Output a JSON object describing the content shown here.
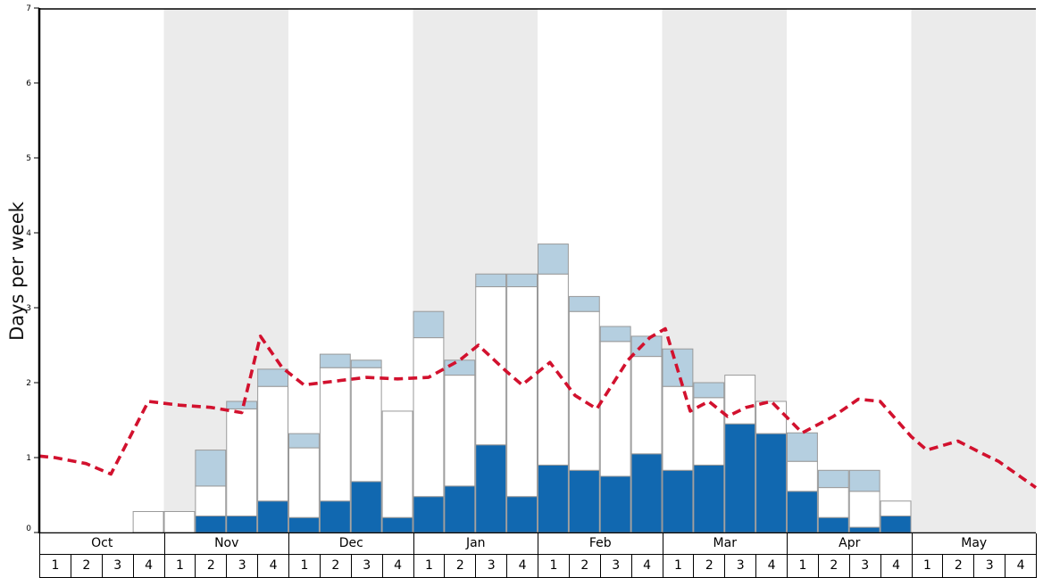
{
  "colors": {
    "band": "#ebebeb",
    "bar_border": "#999999",
    "axis": "#000000",
    "tick_text": "#000000"
  },
  "chart_data": {
    "type": "bar",
    "title": "",
    "xlabel": "",
    "ylabel": "Days per week",
    "ylim": [
      0,
      7
    ],
    "yticks": [
      "0",
      "1",
      "2",
      "3",
      "4",
      "5",
      "6",
      "7"
    ],
    "grid": false,
    "legend": "none",
    "months": [
      "Oct",
      "Nov",
      "Dec",
      "Jan",
      "Feb",
      "Mar",
      "Apr",
      "May"
    ],
    "shaded_months": [
      1,
      3,
      5,
      7
    ],
    "week_labels": [
      "1",
      "2",
      "3",
      "4"
    ],
    "series": [
      {
        "name": "dark-blue-days",
        "color": "#1168b0",
        "values": [
          0,
          0,
          0,
          0,
          0,
          0.22,
          0.22,
          0.42,
          0.2,
          0.42,
          0.68,
          0.2,
          0.48,
          0.62,
          1.17,
          0.48,
          0.9,
          0.83,
          0.75,
          1.05,
          0.83,
          0.9,
          1.45,
          1.32,
          0.55,
          0.2,
          0.07,
          0.22,
          0,
          0,
          0,
          0
        ]
      },
      {
        "name": "white-days",
        "color": "#ffffff",
        "values": [
          0,
          0,
          0,
          0.28,
          0.28,
          0.4,
          1.43,
          1.53,
          0.93,
          1.78,
          1.52,
          1.42,
          2.12,
          1.48,
          2.11,
          2.8,
          2.55,
          2.12,
          1.8,
          1.3,
          1.12,
          0.9,
          0.65,
          0.43,
          0.4,
          0.4,
          0.48,
          0.2,
          0,
          0,
          0,
          0
        ]
      },
      {
        "name": "light-blue-days",
        "color": "#b5cfe0",
        "values": [
          0,
          0,
          0,
          0,
          0,
          0.48,
          0.1,
          0.23,
          0.19,
          0.18,
          0.1,
          0,
          0.35,
          0.2,
          0.17,
          0.17,
          0.4,
          0.2,
          0.2,
          0.27,
          0.5,
          0.2,
          0,
          0,
          0.38,
          0.23,
          0.28,
          0,
          0,
          0,
          0,
          0
        ]
      }
    ],
    "line": {
      "name": "average-days-trend",
      "color": "#d2112e",
      "style": "dashed",
      "dash": [
        10,
        6
      ],
      "points": [
        [
          0,
          1.02
        ],
        [
          0.5,
          1.0
        ],
        [
          1.5,
          0.92
        ],
        [
          2.3,
          0.78
        ],
        [
          3.5,
          1.75
        ],
        [
          4.5,
          1.7
        ],
        [
          5.5,
          1.67
        ],
        [
          6.5,
          1.6
        ],
        [
          7.1,
          2.62
        ],
        [
          7.8,
          2.2
        ],
        [
          8.5,
          1.97
        ],
        [
          9.5,
          2.02
        ],
        [
          10.5,
          2.07
        ],
        [
          11.5,
          2.05
        ],
        [
          12.5,
          2.07
        ],
        [
          13.5,
          2.3
        ],
        [
          14.1,
          2.5
        ],
        [
          15.0,
          2.15
        ],
        [
          15.5,
          1.97
        ],
        [
          16.4,
          2.27
        ],
        [
          17.2,
          1.83
        ],
        [
          17.9,
          1.65
        ],
        [
          18.9,
          2.3
        ],
        [
          19.6,
          2.6
        ],
        [
          20.1,
          2.72
        ],
        [
          20.9,
          1.62
        ],
        [
          21.5,
          1.75
        ],
        [
          22.1,
          1.55
        ],
        [
          22.7,
          1.67
        ],
        [
          23.5,
          1.75
        ],
        [
          24.5,
          1.33
        ],
        [
          25.5,
          1.55
        ],
        [
          26.3,
          1.78
        ],
        [
          27.0,
          1.75
        ],
        [
          28.0,
          1.28
        ],
        [
          28.5,
          1.1
        ],
        [
          29.5,
          1.22
        ],
        [
          30.3,
          1.05
        ],
        [
          30.8,
          0.95
        ],
        [
          32,
          0.6
        ]
      ]
    }
  }
}
